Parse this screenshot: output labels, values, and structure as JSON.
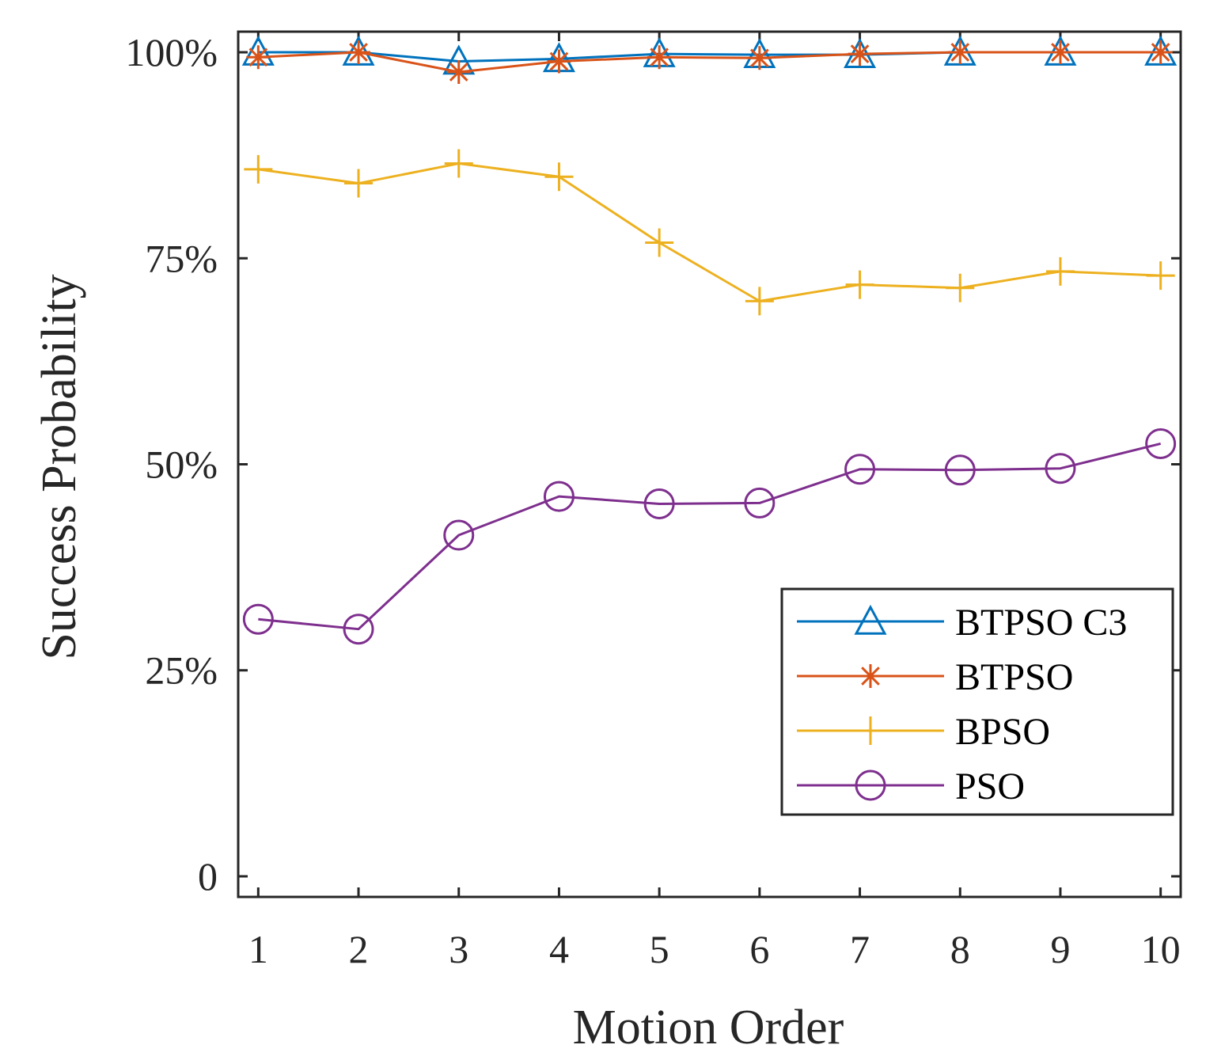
{
  "chart_data": {
    "type": "line",
    "title": "",
    "xlabel": "Motion Order",
    "ylabel": "Success Probability",
    "x": [
      1,
      2,
      3,
      4,
      5,
      6,
      7,
      8,
      9,
      10
    ],
    "xticks": [
      "1",
      "2",
      "3",
      "4",
      "5",
      "6",
      "7",
      "8",
      "9",
      "10"
    ],
    "yticks": [
      {
        "value": 0,
        "label": "0"
      },
      {
        "value": 25,
        "label": "25%"
      },
      {
        "value": 50,
        "label": "50%"
      },
      {
        "value": 75,
        "label": "75%"
      },
      {
        "value": 100,
        "label": "100%"
      }
    ],
    "xlim": [
      0.8,
      10.2
    ],
    "ylim": [
      -2.5,
      102.5
    ],
    "grid": false,
    "legend_position": "bottom-right",
    "series": [
      {
        "name": "BTPSO C3",
        "color": "#0072BD",
        "marker": "triangle",
        "values": [
          100,
          100,
          98.9,
          99.2,
          99.8,
          99.7,
          99.7,
          100,
          100,
          100
        ]
      },
      {
        "name": "BTPSO",
        "color": "#D95319",
        "marker": "asterisk",
        "values": [
          99.4,
          100,
          97.6,
          98.9,
          99.4,
          99.3,
          99.8,
          100,
          100,
          100
        ]
      },
      {
        "name": "BPSO",
        "color": "#EDB120",
        "marker": "plus",
        "values": [
          85.8,
          84.1,
          86.5,
          84.9,
          76.9,
          69.8,
          71.8,
          71.4,
          73.4,
          72.9
        ]
      },
      {
        "name": "PSO",
        "color": "#7E2F8E",
        "marker": "circle",
        "values": [
          31.2,
          30.0,
          41.4,
          46.1,
          45.2,
          45.3,
          49.4,
          49.3,
          49.5,
          52.5
        ]
      }
    ]
  }
}
